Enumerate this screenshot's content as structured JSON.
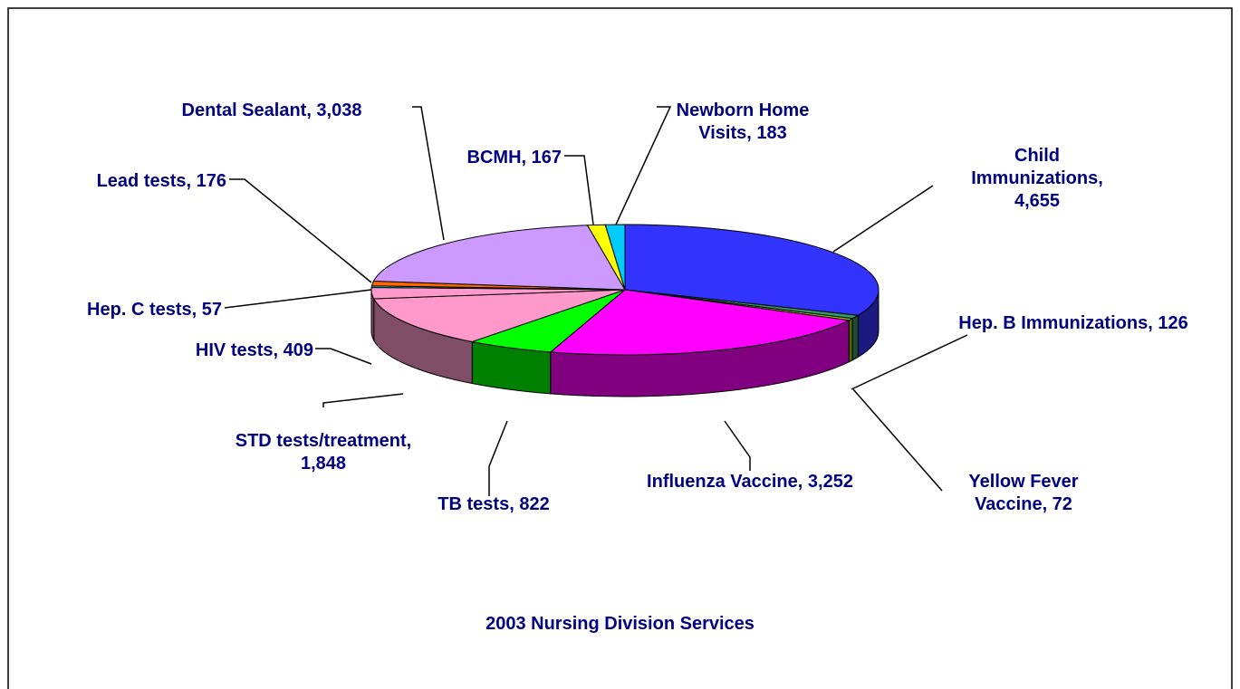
{
  "chart_data": {
    "type": "pie3d",
    "title": "2003 Nursing Division Services",
    "values": [
      4655,
      126,
      72,
      3252,
      822,
      1848,
      409,
      57,
      176,
      3038,
      167,
      183
    ],
    "value_labels": [
      "Child Immunizations, 4,655",
      "Hep. B Immunizations, 126",
      "Yellow Fever Vaccine, 72",
      "Influenza Vaccine, 3,252",
      "TB tests, 822",
      "STD tests/treatment, 1,848",
      "HIV tests, 409",
      "Hep. C tests, 57",
      "Lead tests, 176",
      "Dental Sealant, 3,038",
      "BCMH, 167",
      "Newborn Home Visits, 183"
    ],
    "colors": [
      "#3333ff",
      "#339966",
      "#99cc00",
      "#ff00ff",
      "#00ff00",
      "#ff99cc",
      "#ff99cc",
      "#00ffff",
      "#ff6600",
      "#cc99ff",
      "#ffff00",
      "#00ccff"
    ]
  }
}
